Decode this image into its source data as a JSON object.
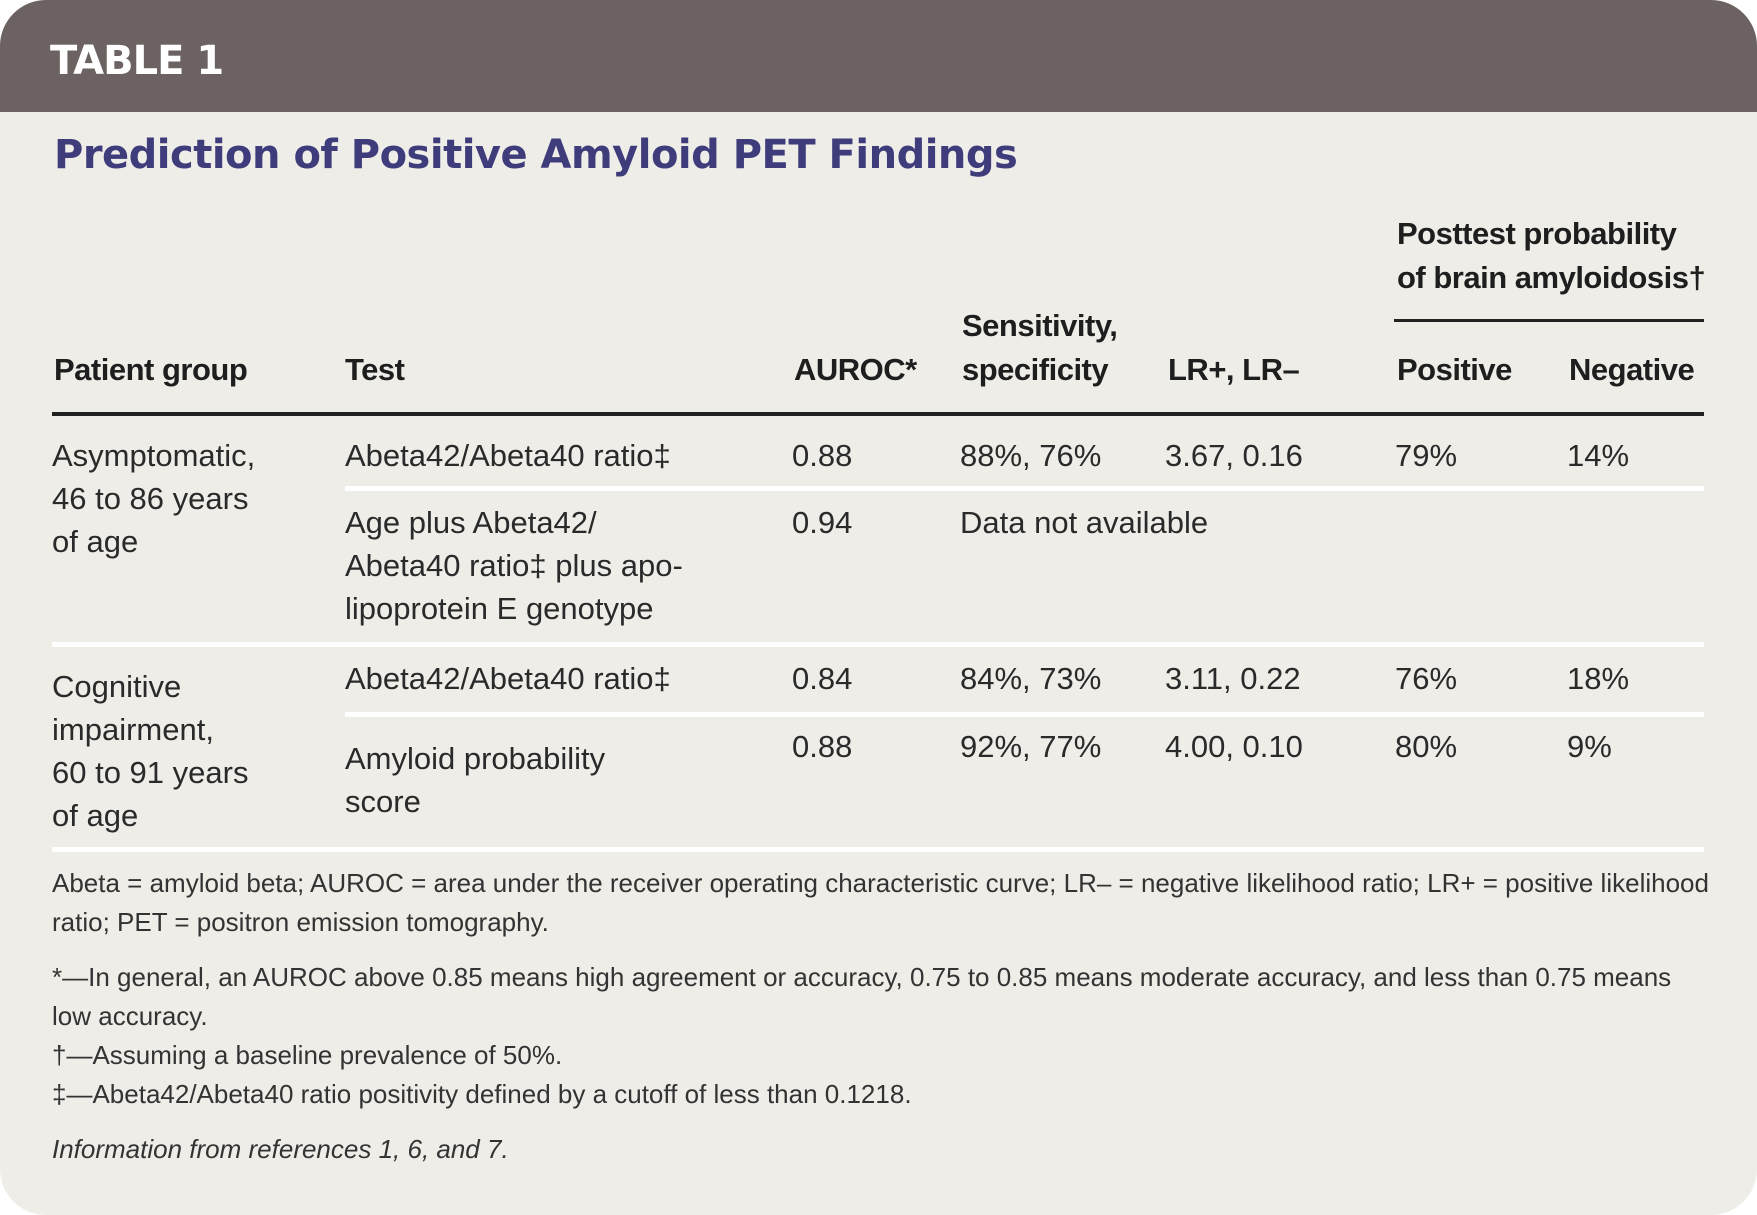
{
  "banner": {
    "label": "TABLE 1"
  },
  "title": "Prediction of Positive Amyloid PET Findings",
  "colors": {
    "banner_bg": "#6b6261",
    "title": "#3f3c7c",
    "card_bg": "#efede8"
  },
  "table": {
    "headers": {
      "patient_group": "Patient group",
      "test": "Test",
      "auroc": "AUROC*",
      "sens_spec_1": "Sensitivity,",
      "sens_spec_2": "specificity",
      "lr": "LR+, LR–",
      "posttest_1": "Posttest probability",
      "posttest_2": "of brain amyloidosis†",
      "positive": "Positive",
      "negative": "Negative"
    },
    "groups": [
      {
        "patient_group": [
          "Asymptomatic,",
          "46 to 86 years",
          "of age"
        ],
        "rows": [
          {
            "test": [
              "Abeta42/Abeta40 ratio‡"
            ],
            "auroc": "0.88",
            "sens_spec": "88%, 76%",
            "lr": "3.67, 0.16",
            "positive": "79%",
            "negative": "14%"
          },
          {
            "test": [
              "Age plus Abeta42/",
              "Abeta40 ratio‡ plus apo-",
              "lipoprotein E genotype"
            ],
            "auroc": "0.94",
            "sens_spec": "Data not available",
            "lr": "",
            "positive": "",
            "negative": ""
          }
        ]
      },
      {
        "patient_group": [
          "Cognitive",
          "impairment,",
          "60 to 91 years",
          "of age"
        ],
        "rows": [
          {
            "test": [
              "Abeta42/Abeta40 ratio‡"
            ],
            "auroc": "0.84",
            "sens_spec": "84%, 73%",
            "lr": "3.11, 0.22",
            "positive": "76%",
            "negative": "18%"
          },
          {
            "test": [
              "Amyloid probability",
              "score"
            ],
            "auroc": "0.88",
            "sens_spec": "92%, 77%",
            "lr": "4.00, 0.10",
            "positive": "80%",
            "negative": "9%"
          }
        ]
      }
    ]
  },
  "notes": {
    "abbrev": "Abeta = amyloid beta; AUROC = area under the receiver operating characteristic curve; LR– = negative likelihood ratio; LR+ = positive likelihood ratio; PET = positron emission tomography.",
    "star": "*—In general, an AUROC above 0.85 means high agreement or accuracy, 0.75 to 0.85 means moderate accuracy, and less than 0.75 means low accuracy.",
    "dagger": "†—Assuming a baseline prevalence of 50%.",
    "ddagger": "‡—Abeta42/Abeta40 ratio positivity defined by a cutoff of less than 0.1218.",
    "source": "Information from references 1, 6, and 7."
  }
}
